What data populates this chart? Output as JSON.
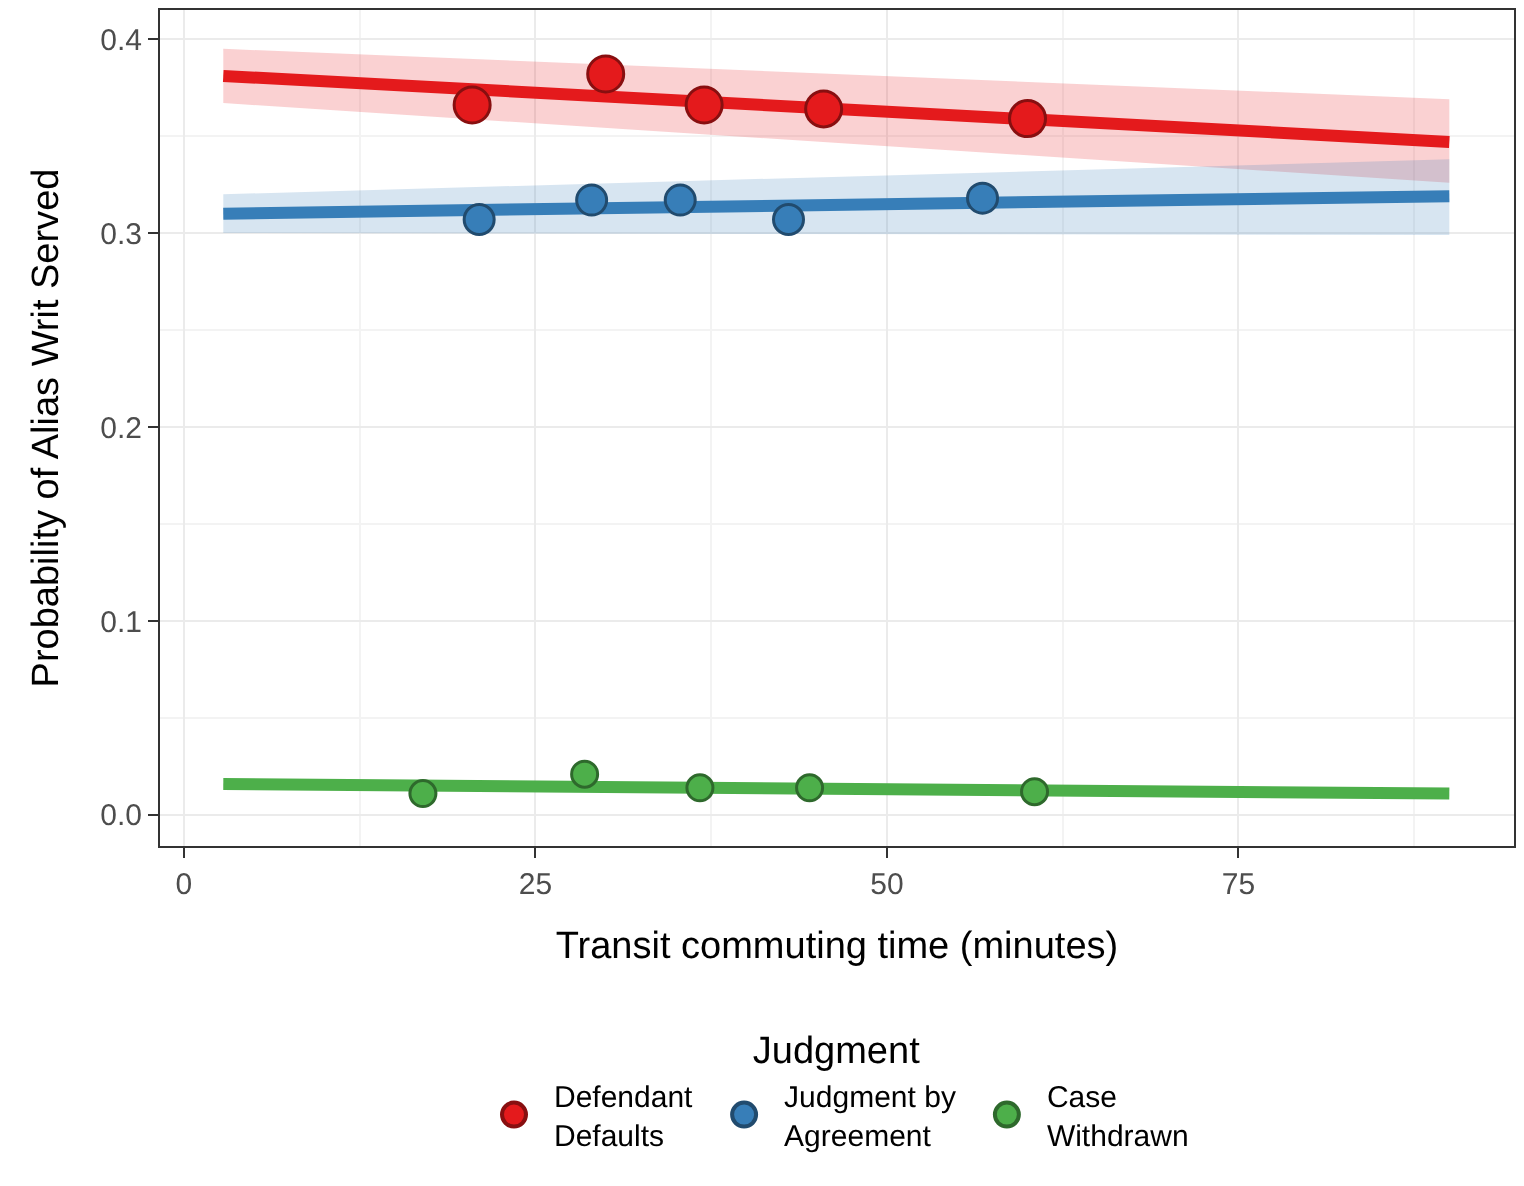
{
  "chart_data": {
    "type": "scatter",
    "xlabel": "Transit commuting time (minutes)",
    "ylabel": "Probability of Alias Writ Served",
    "legend_title": "Judgment",
    "xlim": [
      -1.7,
      94.6
    ],
    "xticks": [
      0,
      25,
      50,
      75
    ],
    "ylim": [
      -0.016,
      0.415
    ],
    "yticks": [
      {
        "value": 0,
        "label": "0.0"
      },
      0.1,
      0.2,
      0.3,
      0.4
    ],
    "grid": true,
    "legend": "bottom",
    "marker": "circle",
    "series": [
      {
        "type": "line",
        "marker": "none",
        "color": "#e41a1c",
        "x": [
          2.8,
          90
        ],
        "values": [
          0.381,
          0.347
        ],
        "lower": [
          0.367,
          0.326
        ],
        "upper": [
          0.395,
          0.369
        ]
      },
      {
        "type": "line",
        "marker": "none",
        "color": "#377eb8",
        "x": [
          2.8,
          90
        ],
        "values": [
          0.31,
          0.319
        ],
        "lower": [
          0.3,
          0.299
        ],
        "upper": [
          0.32,
          0.338
        ]
      },
      {
        "type": "line",
        "marker": "none",
        "color": "#4daf4a",
        "x": [
          2.8,
          90
        ],
        "values": [
          0.016,
          0.011
        ]
      },
      {
        "name": "Defendant\nDefaults",
        "color": "#e41a1c",
        "x": [
          20.5,
          30,
          37,
          45.5,
          60
        ],
        "values": [
          0.366,
          0.382,
          0.366,
          0.364,
          0.359
        ]
      },
      {
        "name": "Judgment by\nAgreement",
        "color": "#377eb8",
        "x": [
          21,
          29,
          35.3,
          43,
          56.8
        ],
        "values": [
          0.307,
          0.317,
          0.317,
          0.307,
          0.318
        ]
      },
      {
        "name": "Case\nWithdrawn",
        "color": "#4daf4a",
        "x": [
          17,
          28.5,
          36.7,
          44.5,
          60.5
        ],
        "values": [
          0.011,
          0.021,
          0.014,
          0.014,
          0.012
        ]
      }
    ]
  }
}
